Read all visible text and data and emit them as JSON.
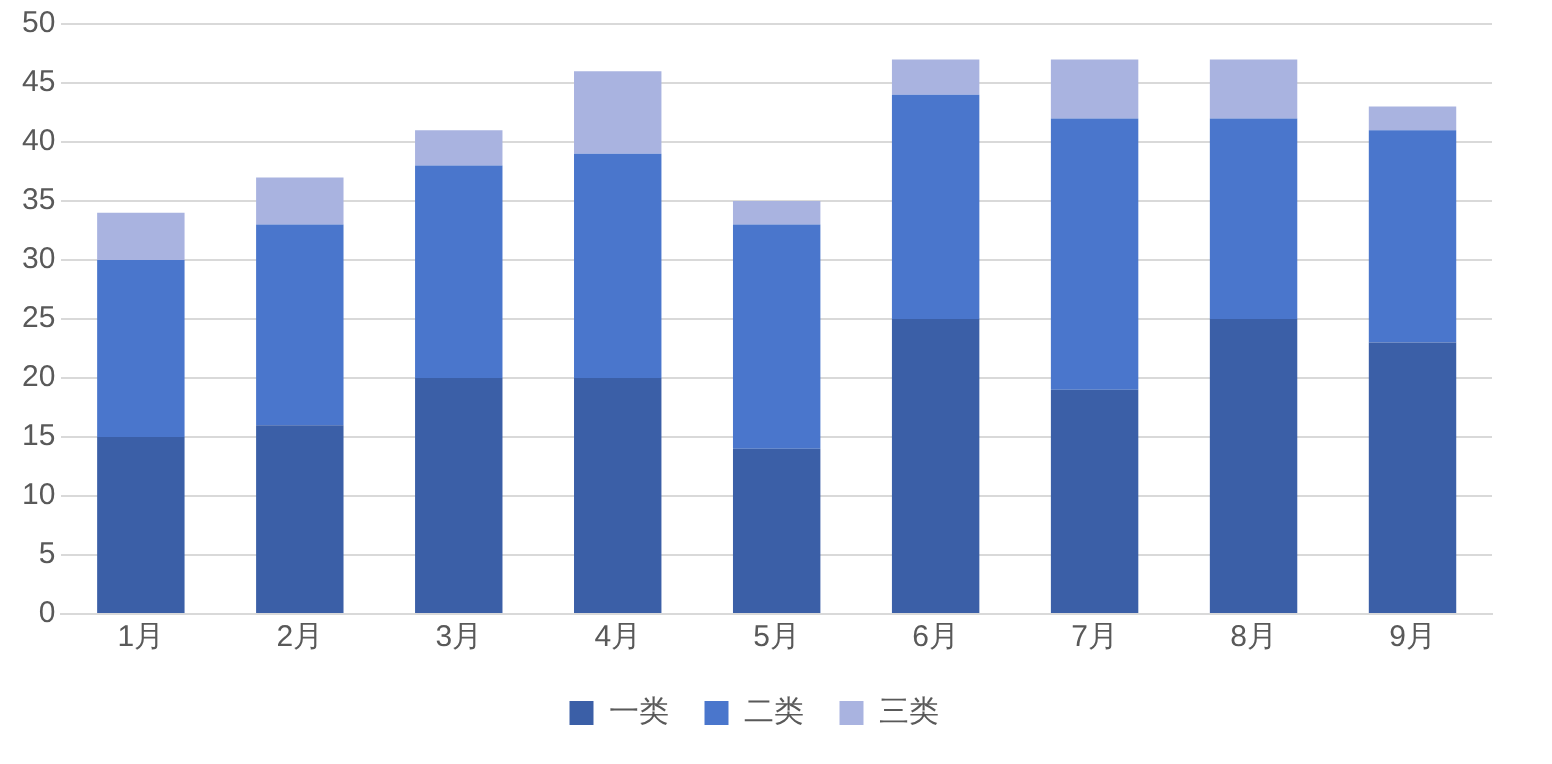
{
  "chart_data": {
    "type": "bar",
    "stacked": true,
    "categories": [
      "1月",
      "2月",
      "3月",
      "4月",
      "5月",
      "6月",
      "7月",
      "8月",
      "9月"
    ],
    "series": [
      {
        "name": "一类",
        "color": "#3b5fa7",
        "values": [
          15,
          16,
          20,
          20,
          14,
          25,
          19,
          25,
          23
        ]
      },
      {
        "name": "二类",
        "color": "#4a76cc",
        "values": [
          15,
          17,
          18,
          19,
          19,
          19,
          23,
          17,
          18
        ]
      },
      {
        "name": "三类",
        "color": "#a9b3e0",
        "values": [
          4,
          4,
          3,
          7,
          2,
          3,
          5,
          5,
          2
        ]
      }
    ],
    "ylim": [
      0,
      50
    ],
    "yticks": [
      0,
      5,
      10,
      15,
      20,
      25,
      30,
      35,
      40,
      45,
      50
    ],
    "grid": "y",
    "legend": "bottom"
  }
}
